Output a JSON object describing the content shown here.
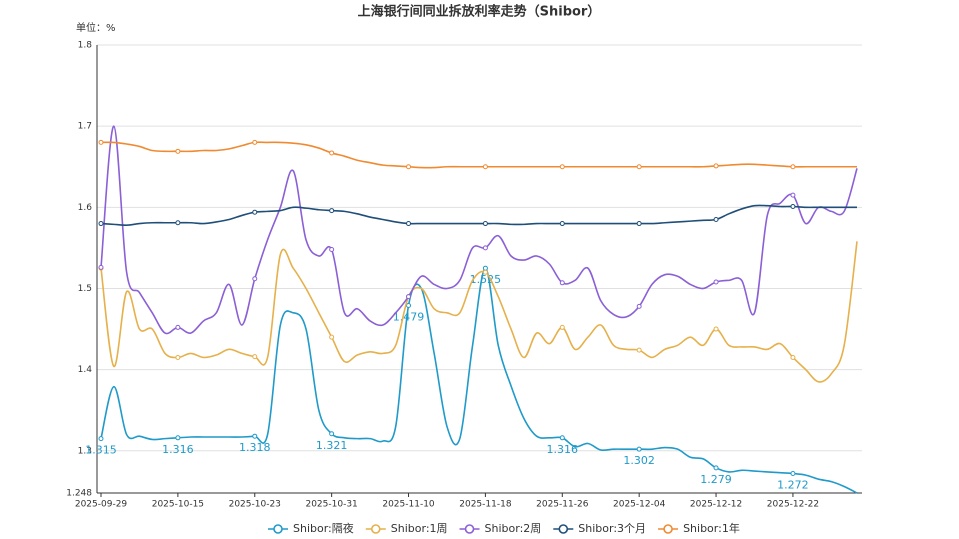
{
  "chart_data": {
    "type": "line",
    "title": "上海银行间同业拆放利率走势（Shibor）",
    "unit_label": "单位：%",
    "categories": [
      "2025-09-29",
      null,
      null,
      null,
      null,
      null,
      "2025-10-15",
      null,
      null,
      null,
      null,
      null,
      "2025-10-23",
      null,
      null,
      null,
      null,
      null,
      "2025-10-31",
      null,
      null,
      null,
      null,
      null,
      "2025-11-10",
      null,
      null,
      null,
      null,
      null,
      "2025-11-18",
      null,
      null,
      null,
      null,
      null,
      "2025-11-26",
      null,
      null,
      null,
      null,
      null,
      "2025-12-04",
      null,
      null,
      null,
      null,
      null,
      "2025-12-12",
      null,
      null,
      null,
      null,
      null,
      "2025-12-22",
      null,
      null,
      null,
      null,
      null
    ],
    "ylim": [
      1.248,
      1.8
    ],
    "yticks": [
      1.248,
      1.3,
      1.4,
      1.5,
      1.6,
      1.7,
      1.8
    ],
    "grid": true,
    "legend": "bottom",
    "smooth": true,
    "series": [
      {
        "name": "Shibor:隔夜",
        "color": "#1f9ac9",
        "values": [
          1.315,
          1.379,
          1.32,
          1.318,
          1.314,
          1.315,
          1.316,
          1.317,
          1.317,
          1.317,
          1.317,
          1.317,
          1.318,
          1.32,
          1.455,
          1.47,
          1.45,
          1.35,
          1.321,
          1.316,
          1.315,
          1.315,
          1.312,
          1.33,
          1.479,
          1.5,
          1.42,
          1.33,
          1.315,
          1.43,
          1.525,
          1.43,
          1.38,
          1.34,
          1.318,
          1.316,
          1.316,
          1.305,
          1.309,
          1.301,
          1.302,
          1.302,
          1.302,
          1.302,
          1.304,
          1.302,
          1.292,
          1.29,
          1.279,
          1.274,
          1.276,
          1.275,
          1.274,
          1.273,
          1.272,
          1.27,
          1.265,
          1.262,
          1.256,
          1.248
        ],
        "value_labels": [
          "1.315",
          null,
          null,
          null,
          null,
          null,
          "1.316",
          null,
          null,
          null,
          null,
          null,
          "1.318",
          null,
          null,
          null,
          null,
          null,
          "1.321",
          null,
          null,
          null,
          null,
          null,
          "1.479",
          null,
          null,
          null,
          null,
          null,
          "1.525",
          null,
          null,
          null,
          null,
          null,
          "1.316",
          null,
          null,
          null,
          null,
          null,
          "1.302",
          null,
          null,
          null,
          null,
          null,
          "1.279",
          null,
          null,
          null,
          null,
          null,
          "1.272",
          null,
          null,
          null,
          null,
          null
        ]
      },
      {
        "name": "Shibor:1周",
        "color": "#e6b04a",
        "values": [
          1.525,
          1.404,
          1.496,
          1.45,
          1.45,
          1.42,
          1.415,
          1.42,
          1.415,
          1.418,
          1.425,
          1.42,
          1.416,
          1.415,
          1.542,
          1.525,
          1.5,
          1.47,
          1.44,
          1.41,
          1.418,
          1.422,
          1.42,
          1.43,
          1.49,
          1.5,
          1.475,
          1.47,
          1.47,
          1.51,
          1.52,
          1.49,
          1.45,
          1.415,
          1.445,
          1.432,
          1.452,
          1.425,
          1.44,
          1.455,
          1.43,
          1.425,
          1.424,
          1.415,
          1.425,
          1.43,
          1.44,
          1.43,
          1.45,
          1.43,
          1.428,
          1.428,
          1.425,
          1.432,
          1.415,
          1.4,
          1.385,
          1.395,
          1.43,
          1.558
        ]
      },
      {
        "name": "Shibor:2周",
        "color": "#8b5fd6",
        "values": [
          1.526,
          1.7,
          1.52,
          1.495,
          1.47,
          1.445,
          1.452,
          1.445,
          1.46,
          1.47,
          1.505,
          1.455,
          1.512,
          1.56,
          1.6,
          1.645,
          1.56,
          1.54,
          1.548,
          1.47,
          1.475,
          1.46,
          1.455,
          1.47,
          1.49,
          1.515,
          1.505,
          1.5,
          1.51,
          1.55,
          1.55,
          1.565,
          1.54,
          1.535,
          1.54,
          1.53,
          1.507,
          1.51,
          1.525,
          1.485,
          1.468,
          1.465,
          1.478,
          1.505,
          1.517,
          1.515,
          1.505,
          1.5,
          1.508,
          1.51,
          1.51,
          1.47,
          1.59,
          1.605,
          1.615,
          1.58,
          1.6,
          1.595,
          1.595,
          1.648
        ]
      },
      {
        "name": "Shibor:3个月",
        "color": "#1f4e79",
        "values": [
          1.58,
          1.579,
          1.578,
          1.58,
          1.581,
          1.581,
          1.581,
          1.581,
          1.58,
          1.582,
          1.585,
          1.59,
          1.594,
          1.595,
          1.596,
          1.6,
          1.599,
          1.597,
          1.596,
          1.595,
          1.592,
          1.588,
          1.585,
          1.582,
          1.58,
          1.58,
          1.58,
          1.58,
          1.58,
          1.58,
          1.58,
          1.58,
          1.579,
          1.579,
          1.58,
          1.58,
          1.58,
          1.58,
          1.58,
          1.58,
          1.58,
          1.58,
          1.58,
          1.58,
          1.581,
          1.582,
          1.583,
          1.584,
          1.585,
          1.592,
          1.598,
          1.602,
          1.602,
          1.601,
          1.601,
          1.6,
          1.6,
          1.6,
          1.6,
          1.6
        ]
      },
      {
        "name": "Shibor:1年",
        "color": "#f08a30",
        "values": [
          1.68,
          1.68,
          1.678,
          1.675,
          1.67,
          1.669,
          1.669,
          1.669,
          1.67,
          1.67,
          1.672,
          1.676,
          1.68,
          1.68,
          1.68,
          1.679,
          1.677,
          1.673,
          1.667,
          1.663,
          1.658,
          1.655,
          1.652,
          1.651,
          1.65,
          1.649,
          1.649,
          1.65,
          1.65,
          1.65,
          1.65,
          1.65,
          1.65,
          1.65,
          1.65,
          1.65,
          1.65,
          1.65,
          1.65,
          1.65,
          1.65,
          1.65,
          1.65,
          1.65,
          1.65,
          1.65,
          1.65,
          1.65,
          1.651,
          1.652,
          1.653,
          1.653,
          1.652,
          1.651,
          1.65,
          1.65,
          1.65,
          1.65,
          1.65,
          1.65
        ]
      }
    ]
  }
}
